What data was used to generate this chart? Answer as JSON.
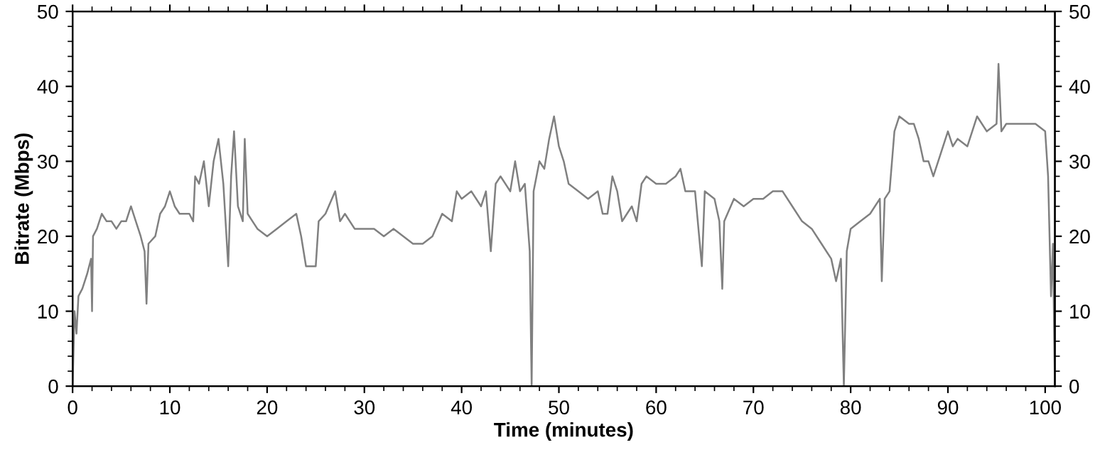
{
  "chart_data": {
    "type": "line",
    "xlabel": "Time (minutes)",
    "ylabel": "Bitrate (Mbps)",
    "xlim": [
      0,
      101
    ],
    "xticks": [
      0,
      10,
      20,
      30,
      40,
      50,
      60,
      70,
      80,
      90,
      100
    ],
    "ylim": [
      0,
      50
    ],
    "yticks": [
      0,
      10,
      20,
      30,
      40,
      50
    ],
    "y2lim": [
      0,
      50
    ],
    "y2ticks": [
      0,
      10,
      20,
      30,
      40,
      50
    ],
    "grid": false,
    "legend": false,
    "marker": "none",
    "line_style": "solid",
    "series": [
      {
        "color": "#808080",
        "x": [
          0,
          0.2,
          0.4,
          0.6,
          1,
          1.5,
          1.9,
          2.0,
          2.1,
          2.5,
          3,
          3.5,
          4,
          4.5,
          5,
          5.5,
          6,
          6.5,
          7,
          7.4,
          7.6,
          7.8,
          8.5,
          9,
          9.5,
          10,
          10.5,
          11,
          12,
          12.4,
          12.6,
          13,
          13.5,
          14,
          14.5,
          15,
          15.5,
          16,
          16.3,
          16.6,
          17,
          17.5,
          17.7,
          18,
          18.5,
          19,
          20,
          21,
          22,
          23,
          23.5,
          24,
          25,
          25.3,
          26,
          27,
          27.5,
          28,
          29,
          30,
          31,
          32,
          33,
          34,
          35,
          36,
          37,
          38,
          39,
          39.5,
          40,
          41,
          42,
          42.5,
          43,
          43.5,
          44,
          45,
          45.5,
          46,
          46.5,
          47,
          47.2,
          47.4,
          48,
          48.5,
          49,
          49.5,
          50,
          50.5,
          51,
          52,
          53,
          54,
          54.5,
          55,
          55.5,
          56,
          56.5,
          57,
          57.5,
          58,
          58.5,
          59,
          60,
          61,
          62,
          62.5,
          63,
          64,
          64.7,
          65,
          66,
          66.5,
          66.8,
          67,
          68,
          69,
          70,
          71,
          72,
          73,
          74,
          75,
          76,
          77,
          78,
          78.5,
          79,
          79.3,
          79.6,
          80,
          81,
          82,
          83,
          83.2,
          83.5,
          84,
          84.5,
          85,
          86,
          86.5,
          87,
          87.5,
          88,
          88.5,
          89,
          90,
          90.5,
          91,
          92,
          92.5,
          93,
          94,
          95,
          95.2,
          95.5,
          96,
          97,
          98,
          99,
          100,
          100.3,
          100.6,
          100.8,
          101
        ],
        "values": [
          0,
          10,
          7,
          12,
          13,
          15,
          17,
          10,
          20,
          21,
          23,
          22,
          22,
          21,
          22,
          22,
          24,
          22,
          20,
          18,
          11,
          19,
          20,
          23,
          24,
          26,
          24,
          23,
          23,
          22,
          28,
          27,
          30,
          24,
          30,
          33,
          27,
          16,
          28,
          34,
          24,
          22,
          33,
          23,
          22,
          21,
          20,
          21,
          22,
          23,
          20,
          16,
          16,
          22,
          23,
          26,
          22,
          23,
          21,
          21,
          21,
          20,
          21,
          20,
          19,
          19,
          20,
          23,
          22,
          26,
          25,
          26,
          24,
          26,
          18,
          27,
          28,
          26,
          30,
          26,
          27,
          18,
          0,
          26,
          30,
          29,
          33,
          36,
          32,
          30,
          27,
          26,
          25,
          26,
          23,
          23,
          28,
          26,
          22,
          23,
          24,
          22,
          27,
          28,
          27,
          27,
          28,
          29,
          26,
          26,
          16,
          26,
          25,
          22,
          13,
          22,
          25,
          24,
          25,
          25,
          26,
          26,
          24,
          22,
          21,
          19,
          17,
          14,
          17,
          0,
          18,
          21,
          22,
          23,
          25,
          14,
          25,
          26,
          34,
          36,
          35,
          35,
          33,
          30,
          30,
          28,
          30,
          34,
          32,
          33,
          32,
          34,
          36,
          34,
          35,
          43,
          34,
          35,
          35,
          35,
          35,
          34,
          28,
          12,
          19,
          0
        ]
      }
    ]
  }
}
